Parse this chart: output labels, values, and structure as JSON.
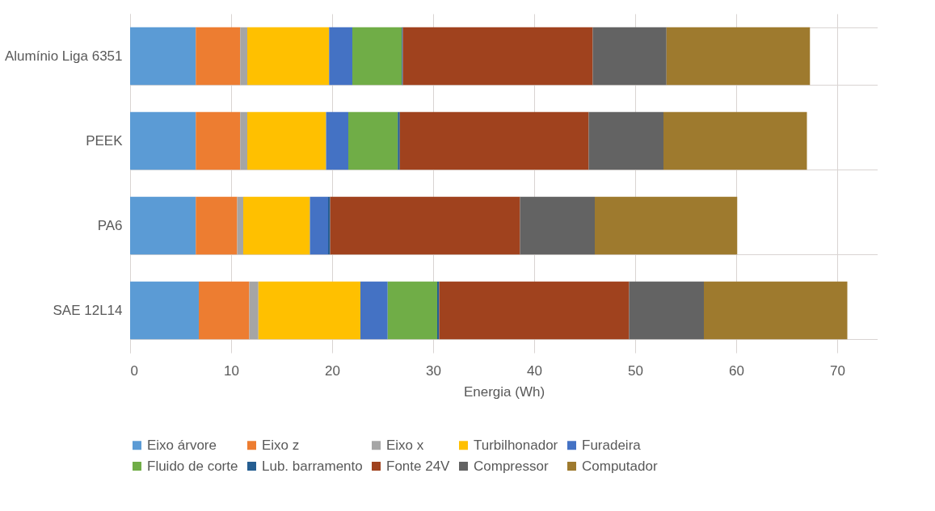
{
  "chart_data": {
    "type": "bar",
    "orientation": "horizontal",
    "stacked": true,
    "xlabel": "Energia (Wh)",
    "categories": [
      "Alumínio Liga 6351",
      "PEEK",
      "PA6",
      "SAE 12L14"
    ],
    "xlim": [
      0,
      74
    ],
    "xticks": [
      0,
      10,
      20,
      30,
      40,
      50,
      60,
      70
    ],
    "grid": true,
    "legend": "bottom",
    "series": [
      {
        "name": "Eixo árvore",
        "color": "#5b9bd5",
        "values": [
          6.5,
          6.5,
          6.5,
          6.8
        ]
      },
      {
        "name": "Eixo z",
        "color": "#ed7d31",
        "values": [
          4.4,
          4.4,
          4.1,
          5.0
        ]
      },
      {
        "name": "Eixo x",
        "color": "#a5a5a5",
        "values": [
          0.7,
          0.7,
          0.6,
          0.9
        ]
      },
      {
        "name": "Turbilhonador",
        "color": "#ffc000",
        "values": [
          8.1,
          7.8,
          6.6,
          10.1
        ]
      },
      {
        "name": "Furadeira",
        "color": "#4472c4",
        "values": [
          2.3,
          2.2,
          1.8,
          2.7
        ]
      },
      {
        "name": "Fluido de corte",
        "color": "#70ad47",
        "values": [
          4.9,
          4.9,
          0,
          4.9
        ]
      },
      {
        "name": "Lub. barramento",
        "color": "#255e91",
        "values": [
          0.1,
          0.2,
          0.2,
          0.2
        ]
      },
      {
        "name": "Fonte 24V",
        "color": "#a0421e",
        "values": [
          18.8,
          18.7,
          18.8,
          18.8
        ]
      },
      {
        "name": "Compressor",
        "color": "#636363",
        "values": [
          7.3,
          7.4,
          7.4,
          7.4
        ]
      },
      {
        "name": "Computador",
        "color": "#9e7a2e",
        "values": [
          14.2,
          14.2,
          14.1,
          14.2
        ]
      }
    ]
  }
}
